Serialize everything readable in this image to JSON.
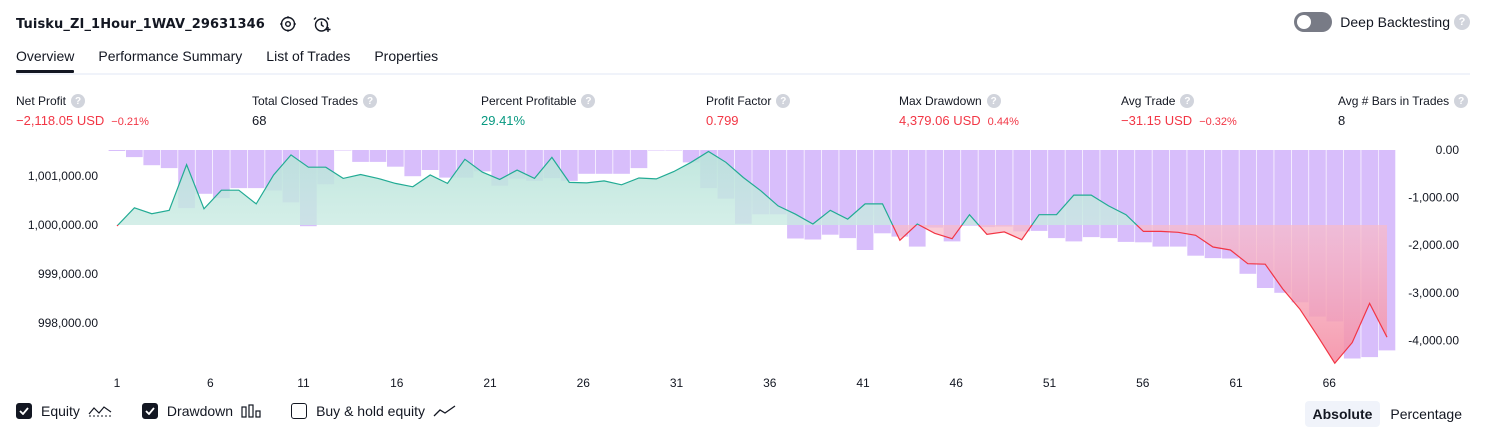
{
  "header": {
    "title": "Tuisku_ZI_1Hour_1WAV_29631346",
    "deep_backtesting_label": "Deep Backtesting",
    "help_glyph": "?"
  },
  "tabs": [
    {
      "label": "Overview",
      "active": true
    },
    {
      "label": "Performance Summary",
      "active": false
    },
    {
      "label": "List of Trades",
      "active": false
    },
    {
      "label": "Properties",
      "active": false
    }
  ],
  "metrics": [
    {
      "label": "Net Profit",
      "value": "−2,118.05 USD",
      "pct": "−0.21%",
      "color": "neg"
    },
    {
      "label": "Total Closed Trades",
      "value": "68",
      "pct": "",
      "color": "neu"
    },
    {
      "label": "Percent Profitable",
      "value": "29.41%",
      "pct": "",
      "color": "pos"
    },
    {
      "label": "Profit Factor",
      "value": "0.799",
      "pct": "",
      "color": "neg"
    },
    {
      "label": "Max Drawdown",
      "value": "4,379.06 USD",
      "pct": "0.44%",
      "color": "neg"
    },
    {
      "label": "Avg Trade",
      "value": "−31.15 USD",
      "pct": "−0.32%",
      "color": "neg"
    },
    {
      "label": "Avg # Bars in Trades",
      "value": "8",
      "pct": "",
      "color": "neu"
    }
  ],
  "legend": {
    "equity_label": "Equity",
    "equity_checked": true,
    "drawdown_label": "Drawdown",
    "drawdown_checked": true,
    "buyhold_label": "Buy & hold equity",
    "buyhold_checked": false
  },
  "modes": {
    "absolute_label": "Absolute",
    "percentage_label": "Percentage",
    "active": "absolute"
  },
  "colors": {
    "equity_up_line": "#22ab94",
    "equity_down_line": "#f23645",
    "equity_up_fill": "#d6efe9",
    "equity_down_fill": "#f9a6b6",
    "drawdown_bar": "#d1b3fa",
    "drawdown_bar_overlap": "#b8aee8",
    "text": "#131722",
    "negative": "#f23645",
    "positive": "#089981"
  },
  "chart_data": {
    "type": "area",
    "x_ticks": [
      1,
      6,
      11,
      16,
      21,
      26,
      31,
      36,
      41,
      46,
      51,
      56,
      61,
      66
    ],
    "x_range": [
      1,
      69
    ],
    "left_axis": {
      "ticks": [
        998000,
        999000,
        1000000,
        1001000
      ],
      "tick_labels": [
        "998,000.00",
        "999,000.00",
        "1,000,000.00",
        "1,001,000.00"
      ],
      "baseline": 1000000
    },
    "right_axis": {
      "ticks": [
        0,
        -1000,
        -2000,
        -3000,
        -4000
      ],
      "tick_labels": [
        "0.00",
        "-1,000.00",
        "-2,000.00",
        "-3,000.00",
        "-4,000.00"
      ]
    },
    "series": [
      {
        "name": "Equity",
        "values": [
          999980,
          1000350,
          1000230,
          1000300,
          1001230,
          1000330,
          1000710,
          1000710,
          1000430,
          1001020,
          1001430,
          1001180,
          1001180,
          1000950,
          1001030,
          1000950,
          1000850,
          1000780,
          1001020,
          1000850,
          1001340,
          1001080,
          1000930,
          1001120,
          1000950,
          1001380,
          1000870,
          1000860,
          1000900,
          1000820,
          1000960,
          1000940,
          1001090,
          1001280,
          1001500,
          1001280,
          1000970,
          1000700,
          1000390,
          1000220,
          1000020,
          1000300,
          1000120,
          1000430,
          1000430,
          999690,
          1000020,
          999830,
          999720,
          1000210,
          999810,
          999860,
          999700,
          1000210,
          1000210,
          1000610,
          1000610,
          1000390,
          1000210,
          999870,
          999870,
          999850,
          999790,
          999550,
          999490,
          999210,
          999200,
          998700,
          998280,
          997740,
          997180,
          997600,
          998400,
          997710
        ]
      },
      {
        "name": "Drawdown",
        "values": [
          -20,
          -150,
          -320,
          -380,
          -1220,
          -920,
          -1010,
          -800,
          -800,
          -850,
          -1100,
          -1600,
          -720,
          0,
          -250,
          -250,
          -350,
          -550,
          -420,
          -580,
          -580,
          -450,
          -750,
          -600,
          -650,
          -590,
          -650,
          -500,
          -500,
          -500,
          -380,
          0,
          0,
          -260,
          -800,
          -1020,
          -1550,
          -1350,
          -1350,
          -1860,
          -1880,
          -1780,
          -1850,
          -2100,
          -1750,
          -1820,
          -2030,
          -1630,
          -1920,
          -1590,
          -1620,
          -1610,
          -1710,
          -1700,
          -1850,
          -1920,
          -1830,
          -1850,
          -1930,
          -1940,
          -2030,
          -2030,
          -2220,
          -2270,
          -2280,
          -2600,
          -2900,
          -3000,
          -3200,
          -3500,
          -3600,
          -4380,
          -4350,
          -4210
        ]
      }
    ]
  }
}
